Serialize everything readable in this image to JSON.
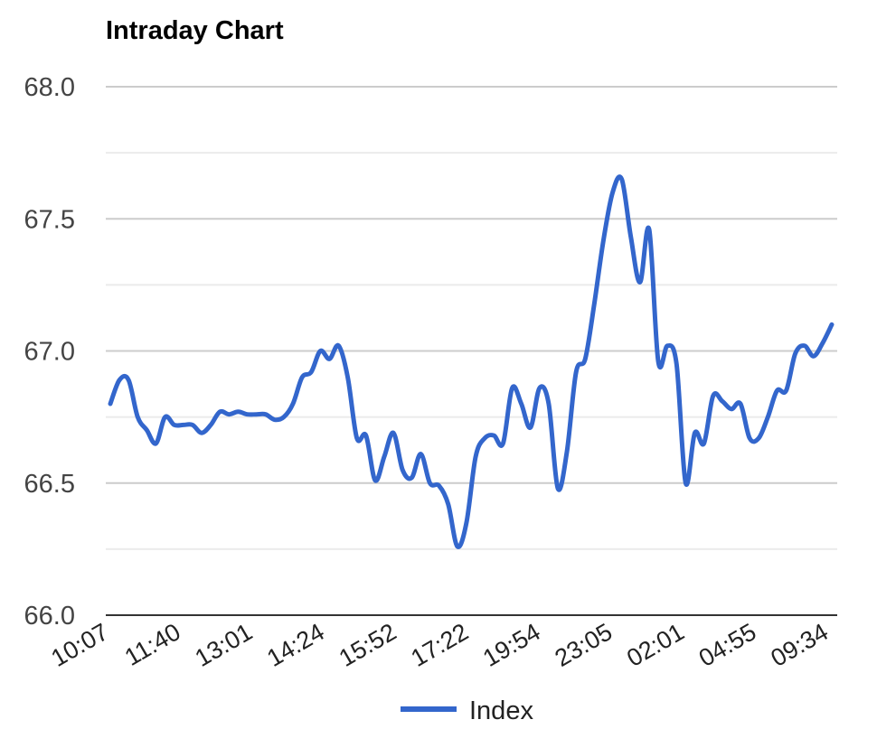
{
  "chart_data": {
    "type": "line",
    "title": "Intraday Chart",
    "xlabel": "",
    "ylabel": "",
    "ylim": [
      66.0,
      68.0
    ],
    "y_ticks": [
      "66.0",
      "66.5",
      "67.0",
      "67.5",
      "68.0"
    ],
    "y_tick_values": [
      66.0,
      66.5,
      67.0,
      67.5,
      68.0
    ],
    "minor_gridlines": true,
    "grid": true,
    "legend_position": "bottom",
    "x_tick_labels": [
      "10:07",
      "11:40",
      "13:01",
      "14:24",
      "15:52",
      "17:22",
      "19:54",
      "23:05",
      "02:01",
      "04:55",
      "09:34"
    ],
    "series": [
      {
        "name": "Index",
        "color": "#3366cc",
        "values": [
          66.8,
          66.89,
          66.89,
          66.75,
          66.7,
          66.65,
          66.75,
          66.72,
          66.72,
          66.72,
          66.69,
          66.72,
          66.77,
          66.76,
          66.77,
          66.76,
          66.76,
          66.76,
          66.74,
          66.75,
          66.8,
          66.9,
          66.92,
          67.0,
          66.97,
          67.02,
          66.9,
          66.67,
          66.68,
          66.51,
          66.6,
          66.69,
          66.55,
          66.52,
          66.61,
          66.5,
          66.49,
          66.42,
          66.26,
          66.35,
          66.6,
          66.67,
          66.68,
          66.65,
          66.86,
          66.8,
          66.71,
          66.86,
          66.8,
          66.48,
          66.62,
          66.92,
          66.97,
          67.18,
          67.42,
          67.6,
          67.65,
          67.43,
          67.26,
          67.46,
          66.96,
          67.02,
          66.95,
          66.5,
          66.69,
          66.65,
          66.83,
          66.81,
          66.78,
          66.8,
          66.67,
          66.67,
          66.75,
          66.85,
          66.85,
          66.99,
          67.02,
          66.98,
          67.03,
          67.1
        ]
      }
    ]
  },
  "legend": {
    "label": "Index"
  }
}
